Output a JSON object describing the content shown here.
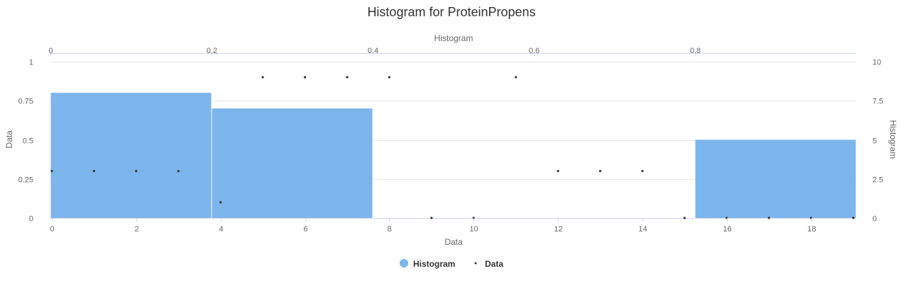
{
  "chart_data": {
    "type": "bar",
    "title": "Histogram for ProteinPropens",
    "colors": {
      "histogram": "#7cb5ec",
      "data": "#333333"
    },
    "axes": {
      "x_bottom": {
        "label": "Data",
        "range": [
          0,
          19
        ],
        "ticks": [
          0,
          2,
          4,
          6,
          8,
          10,
          12,
          14,
          16,
          18
        ]
      },
      "x_top": {
        "label": "Histogram",
        "range": [
          0,
          1
        ],
        "ticks": [
          0,
          0.2,
          0.4,
          0.6,
          0.8
        ]
      },
      "y_left": {
        "label": "Data",
        "range": [
          0,
          1
        ],
        "ticks": [
          0,
          0.25,
          0.5,
          0.75,
          1
        ]
      },
      "y_right": {
        "label": "Histogram",
        "range": [
          0,
          10
        ],
        "ticks": [
          0,
          2.5,
          5,
          7.5,
          10
        ]
      }
    },
    "series": [
      {
        "name": "Histogram",
        "type": "column",
        "axes": [
          "x_top",
          "y_left"
        ],
        "bins": [
          {
            "x0": 0,
            "x1": 0.2,
            "value": 0.8
          },
          {
            "x0": 0.2,
            "x1": 0.4,
            "value": 0.7
          },
          {
            "x0": 0.4,
            "x1": 0.6,
            "value": 0
          },
          {
            "x0": 0.6,
            "x1": 0.8,
            "value": 0
          },
          {
            "x0": 0.8,
            "x1": 1.0,
            "value": 0.5
          }
        ]
      },
      {
        "name": "Data",
        "type": "scatter",
        "axes": [
          "x_bottom",
          "y_right"
        ],
        "points": [
          [
            0,
            3
          ],
          [
            1,
            3
          ],
          [
            2,
            3
          ],
          [
            3,
            3
          ],
          [
            4,
            1
          ],
          [
            5,
            9
          ],
          [
            6,
            9
          ],
          [
            7,
            9
          ],
          [
            8,
            9
          ],
          [
            9,
            0
          ],
          [
            10,
            0
          ],
          [
            11,
            9
          ],
          [
            12,
            3
          ],
          [
            13,
            3
          ],
          [
            14,
            3
          ],
          [
            15,
            0
          ],
          [
            16,
            0
          ],
          [
            17,
            0
          ],
          [
            18,
            0
          ],
          [
            19,
            0
          ]
        ]
      }
    ],
    "legend": {
      "position": "bottom-center",
      "items": [
        "Histogram",
        "Data"
      ]
    },
    "grid": true
  }
}
